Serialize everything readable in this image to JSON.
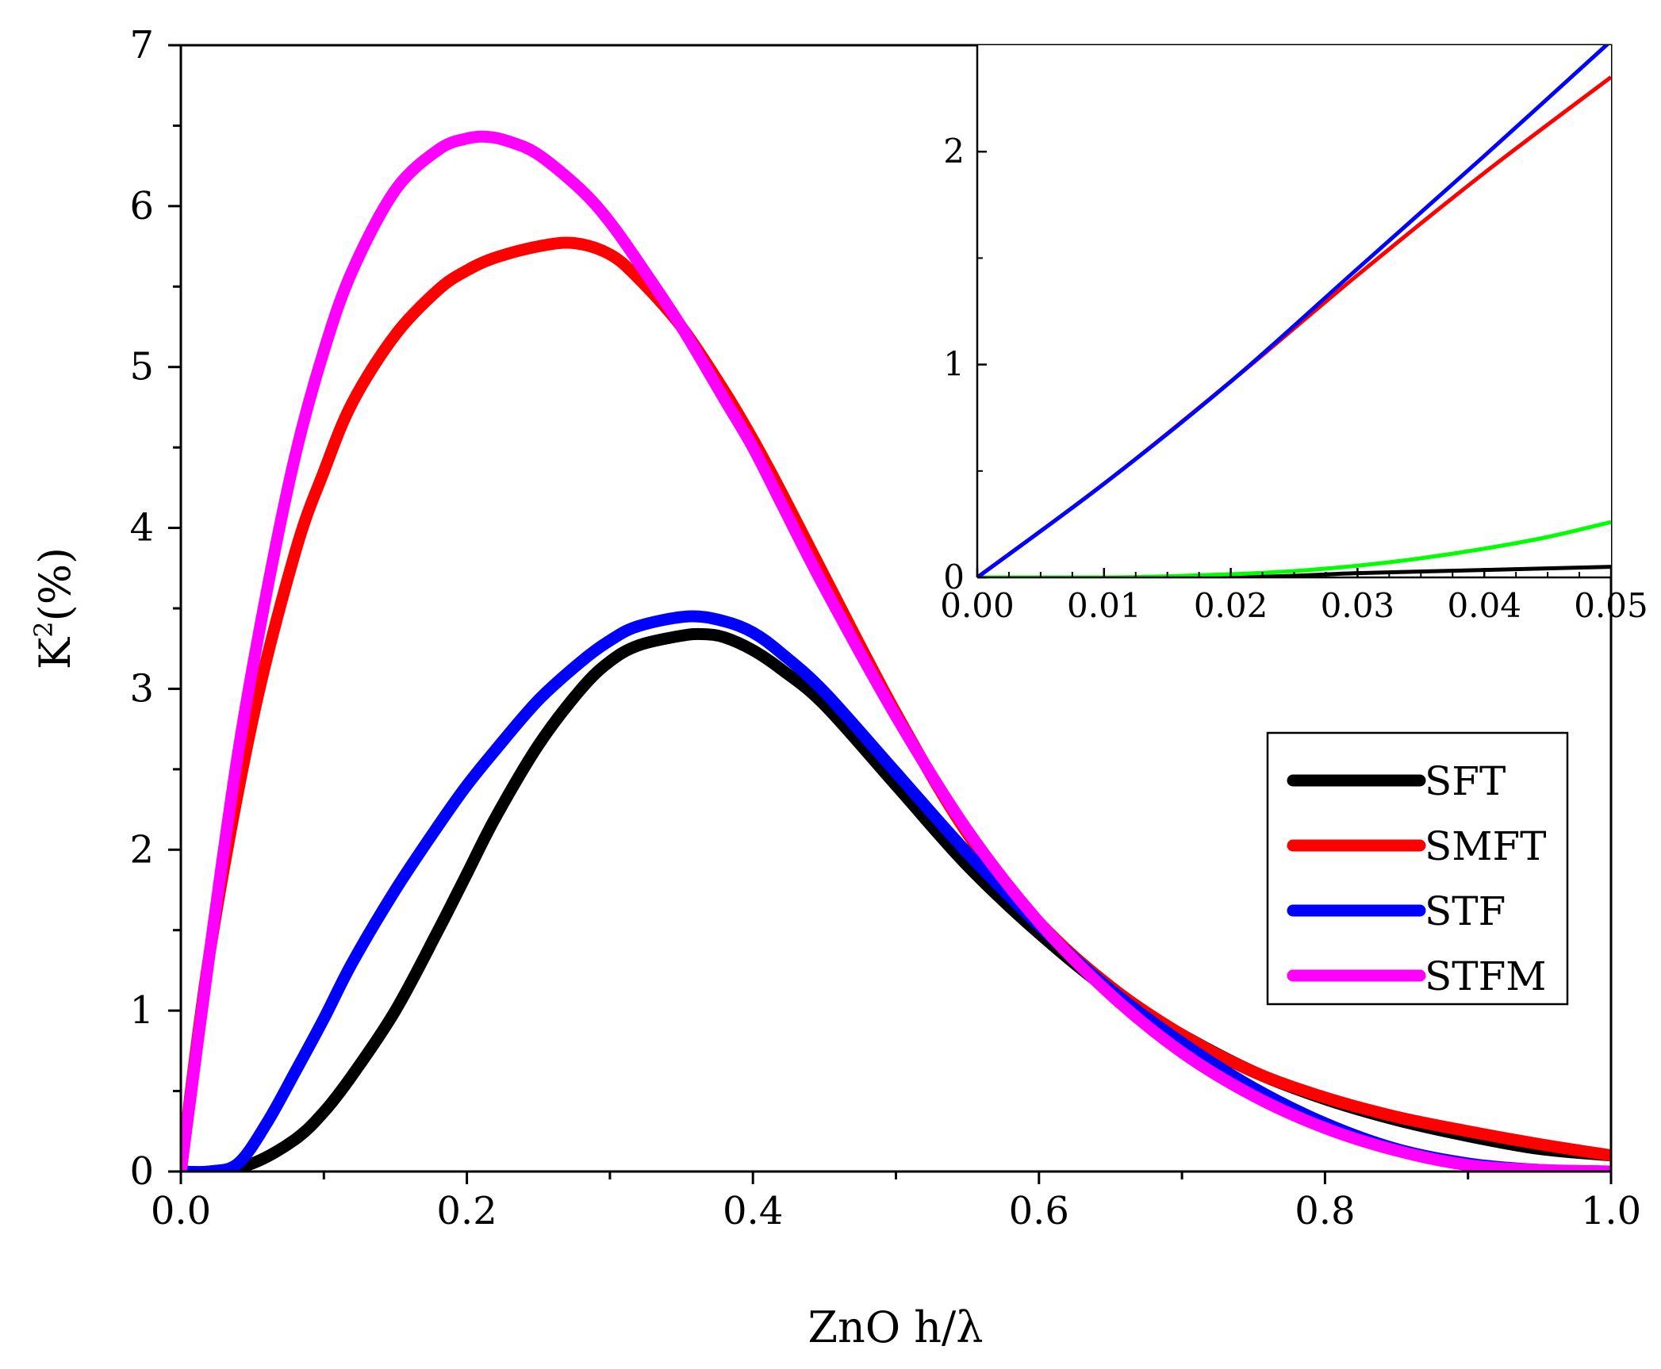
{
  "chart_data": [
    {
      "id": "main",
      "type": "line",
      "title": "",
      "xlabel": "ZnO h/λ",
      "ylabel": {
        "base": "K",
        "sup": "2",
        "rest": "(%)"
      },
      "xlim": [
        0,
        1.0
      ],
      "ylim": [
        0,
        7
      ],
      "xticks": [
        "0.0",
        "0.2",
        "0.4",
        "0.6",
        "0.8",
        "1.0"
      ],
      "yticks": [
        "0",
        "1",
        "2",
        "3",
        "4",
        "5",
        "6",
        "7"
      ],
      "legend_position": "right",
      "series": [
        {
          "name": "SFT",
          "color": "#000000",
          "x": [
            0,
            0.02,
            0.05,
            0.08,
            0.1,
            0.12,
            0.15,
            0.18,
            0.2,
            0.22,
            0.25,
            0.28,
            0.3,
            0.32,
            0.35,
            0.365,
            0.38,
            0.4,
            0.42,
            0.45,
            0.5,
            0.55,
            0.6,
            0.65,
            0.7,
            0.75,
            0.8,
            0.85,
            0.9,
            0.95,
            1.0
          ],
          "y": [
            0,
            0,
            0.05,
            0.2,
            0.37,
            0.6,
            1.0,
            1.5,
            1.85,
            2.2,
            2.65,
            3.0,
            3.17,
            3.27,
            3.33,
            3.34,
            3.32,
            3.24,
            3.12,
            2.9,
            2.4,
            1.9,
            1.48,
            1.12,
            0.85,
            0.62,
            0.45,
            0.32,
            0.22,
            0.14,
            0.1
          ]
        },
        {
          "name": "SMFT",
          "color": "#ff0000",
          "x": [
            0,
            0.02,
            0.05,
            0.08,
            0.1,
            0.12,
            0.15,
            0.18,
            0.2,
            0.22,
            0.25,
            0.275,
            0.3,
            0.32,
            0.35,
            0.38,
            0.4,
            0.42,
            0.45,
            0.5,
            0.55,
            0.6,
            0.65,
            0.7,
            0.75,
            0.8,
            0.85,
            0.9,
            0.95,
            1.0
          ],
          "y": [
            0,
            1.35,
            2.8,
            3.85,
            4.35,
            4.78,
            5.2,
            5.48,
            5.6,
            5.68,
            5.75,
            5.77,
            5.7,
            5.55,
            5.25,
            4.85,
            4.55,
            4.22,
            3.7,
            2.85,
            2.1,
            1.55,
            1.15,
            0.85,
            0.62,
            0.46,
            0.34,
            0.25,
            0.17,
            0.1
          ]
        },
        {
          "name": "STF",
          "color": "#0000ff",
          "x": [
            0,
            0.02,
            0.04,
            0.06,
            0.08,
            0.1,
            0.12,
            0.15,
            0.18,
            0.2,
            0.22,
            0.25,
            0.28,
            0.3,
            0.32,
            0.355,
            0.38,
            0.4,
            0.42,
            0.45,
            0.5,
            0.55,
            0.6,
            0.65,
            0.7,
            0.75,
            0.8,
            0.85,
            0.9,
            0.95,
            1.0
          ],
          "y": [
            0,
            0,
            0.05,
            0.3,
            0.62,
            0.95,
            1.3,
            1.75,
            2.15,
            2.4,
            2.62,
            2.93,
            3.17,
            3.3,
            3.39,
            3.45,
            3.42,
            3.35,
            3.22,
            2.98,
            2.48,
            1.98,
            1.53,
            1.13,
            0.8,
            0.52,
            0.3,
            0.14,
            0.05,
            0.01,
            0
          ]
        },
        {
          "name": "STFM",
          "color": "#ff00ff",
          "x": [
            0,
            0.02,
            0.04,
            0.06,
            0.08,
            0.1,
            0.12,
            0.15,
            0.18,
            0.2,
            0.215,
            0.23,
            0.25,
            0.28,
            0.3,
            0.32,
            0.35,
            0.38,
            0.4,
            0.42,
            0.45,
            0.5,
            0.55,
            0.6,
            0.65,
            0.7,
            0.75,
            0.8,
            0.85,
            0.9,
            0.95,
            1.0
          ],
          "y": [
            0,
            1.35,
            2.6,
            3.6,
            4.45,
            5.1,
            5.6,
            6.1,
            6.35,
            6.42,
            6.43,
            6.4,
            6.32,
            6.1,
            5.9,
            5.65,
            5.25,
            4.8,
            4.5,
            4.15,
            3.63,
            2.83,
            2.12,
            1.55,
            1.1,
            0.74,
            0.47,
            0.27,
            0.13,
            0.04,
            0.01,
            0
          ]
        }
      ]
    },
    {
      "id": "inset",
      "type": "line",
      "title": "",
      "xlabel": "",
      "ylabel": "",
      "xlim": [
        0,
        0.05
      ],
      "ylim": [
        0,
        2.5
      ],
      "xticks": [
        "0.00",
        "0.01",
        "0.02",
        "0.03",
        "0.04",
        "0.05"
      ],
      "yticks": [
        "0",
        "1",
        "2"
      ],
      "series": [
        {
          "name": "black",
          "color": "#000000",
          "x": [
            0,
            0.02,
            0.03,
            0.04,
            0.05
          ],
          "y": [
            0,
            0,
            0.02,
            0.035,
            0.05
          ]
        },
        {
          "name": "green",
          "color": "#00ff00",
          "x": [
            0,
            0.01,
            0.015,
            0.02,
            0.025,
            0.03,
            0.035,
            0.04,
            0.045,
            0.05
          ],
          "y": [
            0,
            0,
            0.005,
            0.015,
            0.03,
            0.055,
            0.09,
            0.135,
            0.19,
            0.26
          ]
        },
        {
          "name": "red",
          "color": "#ff0000",
          "x": [
            0,
            0.01,
            0.02,
            0.03,
            0.04,
            0.05
          ],
          "y": [
            0,
            0.44,
            0.92,
            1.42,
            1.9,
            2.35
          ]
        },
        {
          "name": "blue",
          "color": "#0000ff",
          "x": [
            0,
            0.01,
            0.02,
            0.03,
            0.04,
            0.05
          ],
          "y": [
            0,
            0.44,
            0.92,
            1.45,
            1.98,
            2.52
          ]
        }
      ]
    }
  ]
}
